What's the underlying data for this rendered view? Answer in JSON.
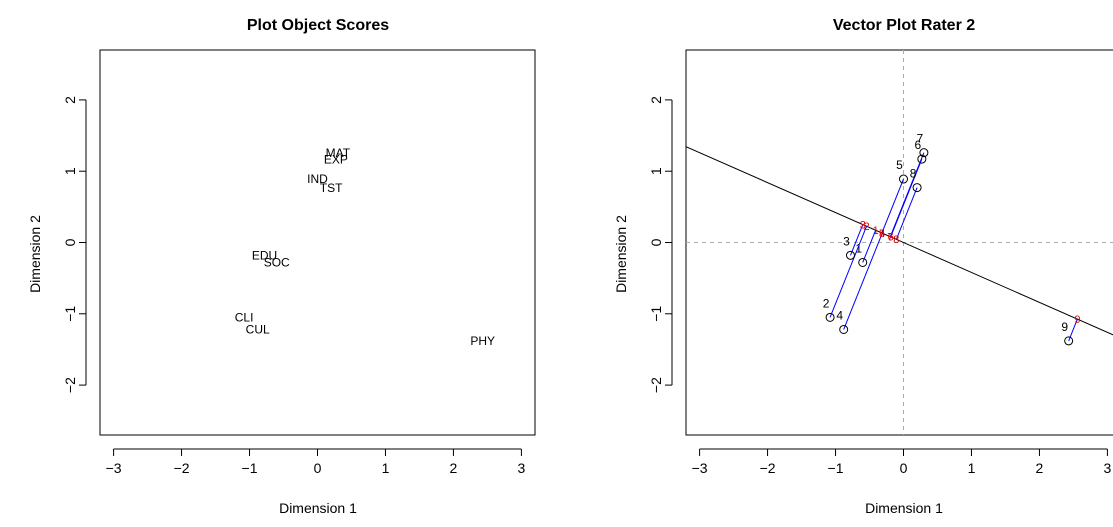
{
  "chart_data": [
    {
      "type": "scatter",
      "title": "Plot Object Scores",
      "xlabel": "Dimension 1",
      "ylabel": "Dimension 2",
      "xlim": [
        -3.2,
        3.2
      ],
      "ylim": [
        -2.7,
        2.7
      ],
      "xticks": [
        -3,
        -2,
        -1,
        0,
        1,
        2,
        3
      ],
      "yticks": [
        -2,
        -1,
        0,
        1,
        2
      ],
      "grid": false,
      "points": [
        {
          "label": "MAT",
          "x": 0.3,
          "y": 1.26
        },
        {
          "label": "EXP",
          "x": 0.27,
          "y": 1.17
        },
        {
          "label": "IND",
          "x": 0.0,
          "y": 0.89
        },
        {
          "label": "TST",
          "x": 0.2,
          "y": 0.77
        },
        {
          "label": "EDU",
          "x": -0.78,
          "y": -0.18
        },
        {
          "label": "SOC",
          "x": -0.6,
          "y": -0.28
        },
        {
          "label": "CLI",
          "x": -1.08,
          "y": -1.05
        },
        {
          "label": "CUL",
          "x": -0.88,
          "y": -1.22
        },
        {
          "label": "PHY",
          "x": 2.43,
          "y": -1.38
        }
      ]
    },
    {
      "type": "scatter",
      "title": "Vector Plot Rater 2",
      "xlabel": "Dimension 1",
      "ylabel": "Dimension 2",
      "xlim": [
        -3.2,
        3.2
      ],
      "ylim": [
        -2.7,
        2.7
      ],
      "xticks": [
        -3,
        -2,
        -1,
        0,
        1,
        2,
        3
      ],
      "yticks": [
        -2,
        -1,
        0,
        1,
        2
      ],
      "grid": false,
      "reference_lines": {
        "x": 0,
        "y": 0,
        "style": "dashed"
      },
      "vector_line": {
        "slope": -0.42,
        "intercept": 0
      },
      "points": [
        {
          "label": "1",
          "x": -0.6,
          "y": -0.28
        },
        {
          "label": "2",
          "x": -1.08,
          "y": -1.05
        },
        {
          "label": "3",
          "x": -0.78,
          "y": -0.18
        },
        {
          "label": "4",
          "x": -0.88,
          "y": -1.22
        },
        {
          "label": "5",
          "x": 0.0,
          "y": 0.89
        },
        {
          "label": "6",
          "x": 0.27,
          "y": 1.17
        },
        {
          "label": "7",
          "x": 0.3,
          "y": 1.26
        },
        {
          "label": "8",
          "x": 0.2,
          "y": 0.77
        },
        {
          "label": "9",
          "x": 2.43,
          "y": -1.38
        }
      ]
    }
  ]
}
